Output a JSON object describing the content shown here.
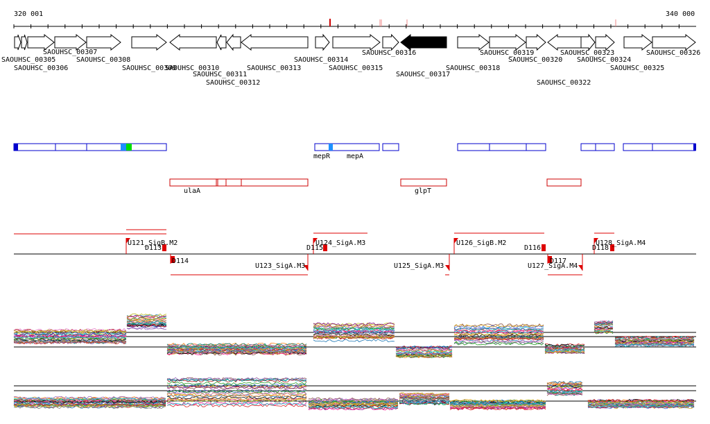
{
  "ruler": {
    "start_label": "320 001",
    "end_label": "340 000"
  },
  "genes": {
    "forward": [
      "SAOUHSC_00305",
      "SAOUHSC_00306",
      "SAOUHSC_00307",
      "SAOUHSC_00308",
      "SAOUHSC_00309",
      "SAOUHSC_00314",
      "SAOUHSC_00315",
      "SAOUHSC_00316",
      "SAOUHSC_00318",
      "SAOUHSC_00319",
      "SAOUHSC_00320",
      "SAOUHSC_00323",
      "SAOUHSC_00324",
      "SAOUHSC_00325",
      "SAOUHSC_00326"
    ],
    "reverse": [
      "SAOUHSC_00310",
      "SAOUHSC_00311",
      "SAOUHSC_00312",
      "SAOUHSC_00313",
      "SAOUHSC_00317",
      "SAOUHSC_00322"
    ],
    "highlighted": "SAOUHSC_00317"
  },
  "operons": {
    "forward_labels": [
      "mepR",
      "mepA"
    ],
    "reverse_labels": [
      "ulaA",
      "glpT"
    ]
  },
  "promoters": {
    "forward": [
      "U121_SigB.M2",
      "U124_SigA.M3",
      "U126_SigB.M2",
      "U128_SigA.M4"
    ],
    "reverse": [
      "U123_SigA.M3",
      "U125_SigA.M3",
      "U127_SigA.M4"
    ],
    "downstream": [
      "D113",
      "D114",
      "D115",
      "D116",
      "D117",
      "D118"
    ]
  },
  "colors": {
    "gene_highlight": "#000000",
    "operon_forward": "#0000cc",
    "operon_reverse": "#cc0000",
    "promoter": "#dd0000",
    "accent_cyan": "#1e90ff",
    "accent_green": "#00dd00"
  }
}
